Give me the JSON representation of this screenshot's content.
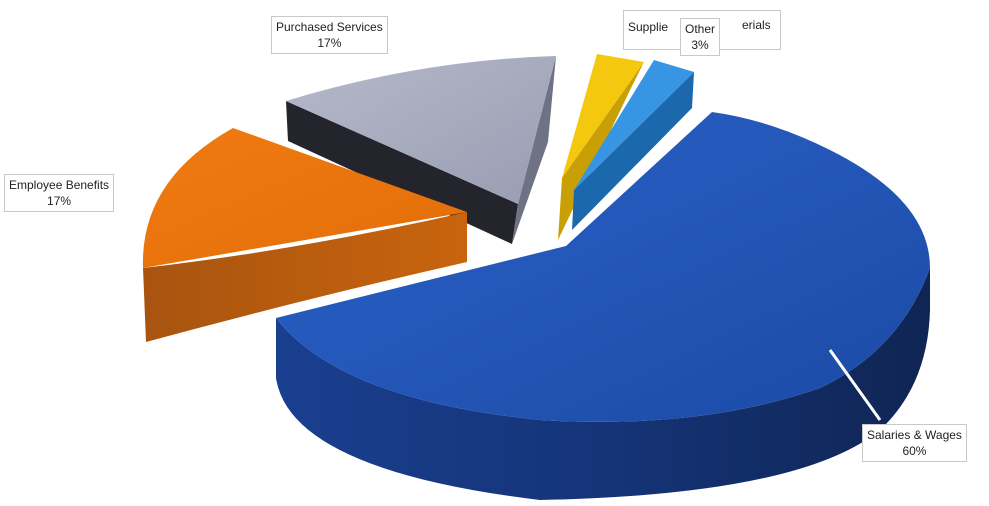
{
  "chart_data": {
    "type": "pie",
    "style": "3d-exploded",
    "slices": [
      {
        "name": "Salaries & Wages",
        "percent_label": "60%",
        "value": 60,
        "color": "#1f4fb0"
      },
      {
        "name": "Employee Benefits",
        "percent_label": "17%",
        "value": 17,
        "color": "#e8720c"
      },
      {
        "name": "Purchased Services",
        "percent_label": "17%",
        "value": 17,
        "color": "#9ea3b8"
      },
      {
        "name": "Supplies & Materials",
        "percent_label": "",
        "value": 3,
        "color": "#f2c40c"
      },
      {
        "name": "Other",
        "percent_label": "3%",
        "value": 3,
        "color": "#2e8fe0"
      }
    ],
    "labels": {
      "salaries": {
        "name": "Salaries & Wages",
        "pct": "60%"
      },
      "benefits": {
        "name": "Employee Benefits",
        "pct": "17%"
      },
      "purchased": {
        "name": "Purchased Services",
        "pct": "17%"
      },
      "supplies": {
        "name": "Supplie",
        "name_tail": "erials"
      },
      "other": {
        "name": "Other",
        "pct": "3%"
      }
    },
    "legend": "none"
  }
}
